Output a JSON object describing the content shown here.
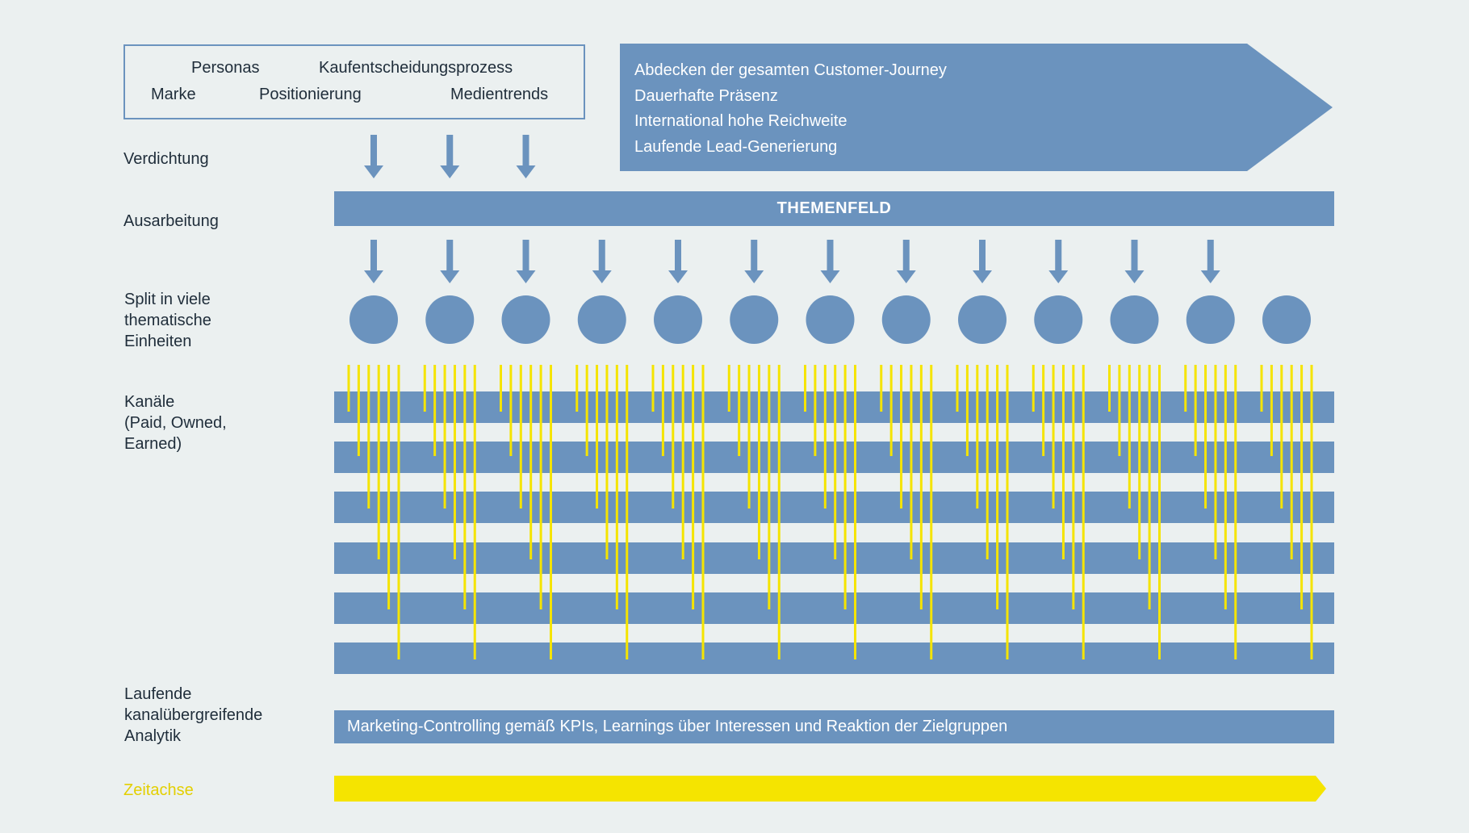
{
  "inputs": {
    "row1": [
      "Personas",
      "Kaufentscheidungsprozess"
    ],
    "row2": [
      "Marke",
      "Positionierung",
      "Medientrends"
    ]
  },
  "goals": [
    "Abdecken der gesamten Customer-Journey",
    "Dauerhafte Präsenz",
    "International hohe Reichweite",
    "Laufende Lead-Generierung"
  ],
  "stages": {
    "verdichtung": "Verdichtung",
    "ausarbeitung": "Ausarbeitung",
    "split": [
      "Split in viele",
      "thematische",
      "Einheiten"
    ],
    "kanaele": [
      "Kanäle",
      "(Paid, Owned,",
      "Earned)"
    ],
    "analytik": [
      "Laufende",
      "kanalübergreifende",
      "Analytik"
    ],
    "zeitachse": "Zeitachse"
  },
  "themenfeld": "THEMENFELD",
  "analytics_bar": "Marketing-Controlling gemäß KPIs, Learnings über Interessen und Reaktion der Zielgruppen",
  "counts": {
    "top_arrows": 3,
    "mid_arrows": 12,
    "units": 13,
    "channel_bands": 6,
    "lines_per_unit": 6
  },
  "colors": {
    "background": "#ebf0f0",
    "blue": "#6b93be",
    "yellow": "#f5e400",
    "yellow_text": "#e3cf00",
    "text": "#1f2d3a",
    "white": "#ffffff"
  }
}
